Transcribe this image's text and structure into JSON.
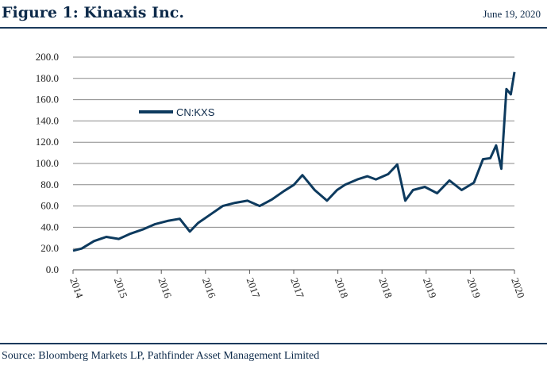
{
  "header": {
    "title": "Figure 1: Kinaxis Inc.",
    "date": "June 19, 2020"
  },
  "footer": {
    "source": "Source: Bloomberg Markets LP, Pathfinder Asset Management Limited"
  },
  "colors": {
    "series": "#0d3a5e",
    "grid": "#8a8a8a",
    "rule": "#1b3a5c"
  },
  "chart_data": {
    "type": "line",
    "title": "",
    "xlabel": "",
    "ylabel": "",
    "ylim": [
      0,
      200
    ],
    "xlim": [
      "2014-06-19",
      "2020-06-19"
    ],
    "grid": true,
    "legend": "upper-left",
    "y_ticks": [
      "0.0",
      "20.0",
      "40.0",
      "60.0",
      "80.0",
      "100.0",
      "120.0",
      "140.0",
      "160.0",
      "180.0",
      "200.0"
    ],
    "x_tick_labels": [
      "2014",
      "2015",
      "2016",
      "2016",
      "2017",
      "2017",
      "2018",
      "2018",
      "2019",
      "2019",
      "2020"
    ],
    "series": [
      {
        "name": "CN:KXS",
        "x": [
          "2014-06-19",
          "2014-08-01",
          "2014-10-01",
          "2014-12-01",
          "2015-02-01",
          "2015-04-01",
          "2015-06-01",
          "2015-08-01",
          "2015-10-01",
          "2015-12-01",
          "2016-01-20",
          "2016-03-01",
          "2016-05-01",
          "2016-07-01",
          "2016-09-01",
          "2016-11-01",
          "2017-01-01",
          "2017-03-01",
          "2017-05-01",
          "2017-06-20",
          "2017-08-01",
          "2017-10-01",
          "2017-12-01",
          "2018-01-20",
          "2018-03-01",
          "2018-05-01",
          "2018-06-20",
          "2018-08-01",
          "2018-10-01",
          "2018-11-15",
          "2018-12-25",
          "2019-02-01",
          "2019-04-01",
          "2019-06-01",
          "2019-08-01",
          "2019-10-01",
          "2019-12-01",
          "2020-01-15",
          "2020-02-20",
          "2020-03-20",
          "2020-04-15",
          "2020-05-10",
          "2020-06-01",
          "2020-06-19"
        ],
        "y": [
          18,
          20,
          27,
          31,
          29,
          34,
          38,
          43,
          46,
          48,
          36,
          44,
          52,
          60,
          63,
          65,
          60,
          66,
          74,
          80,
          89,
          75,
          65,
          75,
          80,
          85,
          88,
          85,
          90,
          99,
          65,
          75,
          78,
          72,
          84,
          75,
          82,
          104,
          105,
          117,
          95,
          170,
          165,
          186
        ]
      }
    ]
  }
}
